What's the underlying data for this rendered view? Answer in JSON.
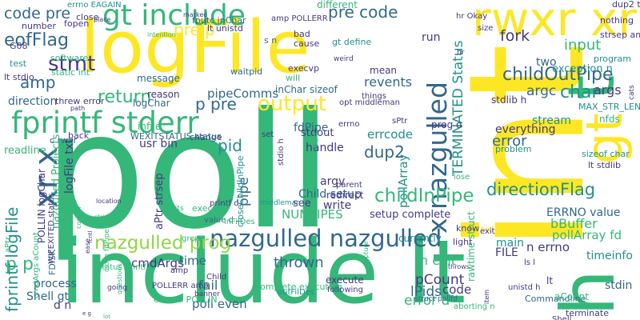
{
  "palette": {
    "background": "#ffffff",
    "yellow": "#fde725",
    "green": "#35b779",
    "teal": "#21918c",
    "blue": "#31688e",
    "purple": "#443983",
    "dark": "#440154",
    "lime": "#90d743"
  },
  "words": [
    {
      "text": "poll",
      "color": "#35b779",
      "rot": 0
    },
    {
      "text": "int",
      "color": "#fde725",
      "rot": 1
    },
    {
      "text": "include lt",
      "color": "#35b779",
      "rot": 0
    },
    {
      "text": "logFile",
      "color": "#fde725",
      "rot": 0
    },
    {
      "text": "gt include",
      "color": "#35b779",
      "rot": 0
    },
    {
      "text": "rwxr xr",
      "color": "#fde725",
      "rot": 0
    },
    {
      "text": "h",
      "color": "#35b779",
      "rot": 1
    },
    {
      "text": "t",
      "color": "#35b779",
      "rot": 1
    },
    {
      "text": "gt",
      "color": "#fde725",
      "rot": 1
    },
    {
      "text": "fprintf stderr",
      "color": "#35b779",
      "rot": 0
    },
    {
      "text": "nazgulled nazgulled",
      "color": "#31688e",
      "rot": 0
    },
    {
      "text": "x nazgulled",
      "color": "#31688e",
      "rot": 1
    },
    {
      "text": "nazgulled prog",
      "color": "#90d743",
      "rot": 0
    },
    {
      "text": "xr x",
      "color": "#31688e",
      "rot": 1
    },
    {
      "text": "eofFlag",
      "color": "#31688e",
      "rot": 0
    },
    {
      "text": "code pre",
      "color": "#31688e",
      "rot": 0
    },
    {
      "text": "pre code",
      "color": "#31688e",
      "rot": 0
    },
    {
      "text": "pre p",
      "color": "#fde725",
      "rot": 0
    },
    {
      "text": "stmt",
      "color": "#443983",
      "rot": 0
    },
    {
      "text": "amp",
      "color": "#31688e",
      "rot": 0
    },
    {
      "text": "return",
      "color": "#35b779",
      "rot": 0
    },
    {
      "text": "p pre",
      "color": "#31688e",
      "rot": 0
    },
    {
      "text": "output",
      "color": "#fde725",
      "rot": 0
    },
    {
      "text": "childOutPipe",
      "color": "#31688e",
      "rot": 0
    },
    {
      "text": "char",
      "color": "#21918c",
      "rot": 0
    },
    {
      "text": "args",
      "color": "#443983",
      "rot": 0
    },
    {
      "text": "argc",
      "color": "#31688e",
      "rot": 0
    },
    {
      "text": "input",
      "color": "#35b779",
      "rot": 0
    },
    {
      "text": "fork",
      "color": "#443983",
      "rot": 0
    },
    {
      "text": "run",
      "color": "#443983",
      "rot": 0
    },
    {
      "text": "exception n",
      "color": "#21918c",
      "rot": 0
    },
    {
      "text": "TERMINATED Status",
      "color": "#21918c",
      "rot": 1
    },
    {
      "text": "revents",
      "color": "#31688e",
      "rot": 0
    },
    {
      "text": "pollArray",
      "color": "#21918c",
      "rot": 1
    },
    {
      "text": "fdPipe",
      "color": "#31688e",
      "rot": 0
    },
    {
      "text": "errcode",
      "color": "#21918c",
      "rot": 0
    },
    {
      "text": "dup2",
      "color": "#31688e",
      "rot": 0
    },
    {
      "text": "childInPipe",
      "color": "#35b779",
      "rot": 0
    },
    {
      "text": "directionFlag",
      "color": "#21918c",
      "rot": 0
    },
    {
      "text": "pid",
      "color": "#21918c",
      "rot": 0
    },
    {
      "text": "pipe",
      "color": "#31688e",
      "rot": 1
    },
    {
      "text": "cmdArgs",
      "color": "#443983",
      "rot": 0
    },
    {
      "text": "time",
      "color": "#31688e",
      "rot": 0
    },
    {
      "text": "thrown",
      "color": "#31688e",
      "rot": 0
    },
    {
      "text": "n exit",
      "color": "#35b779",
      "rot": 0
    },
    {
      "text": "pCount",
      "color": "#443983",
      "rot": 0
    },
    {
      "text": "lPids",
      "color": "#31688e",
      "rot": 0
    },
    {
      "text": "code",
      "color": "#443983",
      "rot": 0
    },
    {
      "text": "error d",
      "color": "#35b779",
      "rot": 0
    },
    {
      "text": "fprintf logFile",
      "color": "#21918c",
      "rot": 1
    },
    {
      "text": "p p",
      "color": "#35b779",
      "rot": 0
    },
    {
      "text": "error",
      "color": "#31688e",
      "rot": 0
    },
    {
      "text": "everything",
      "color": "#443983",
      "rot": 0
    },
    {
      "text": "problem",
      "color": "#21918c",
      "rot": 0
    },
    {
      "text": "bBuffer",
      "color": "#35b779",
      "rot": 0
    },
    {
      "text": "pollArray fd",
      "color": "#35b779",
      "rot": 0
    },
    {
      "text": "n errno",
      "color": "#443983",
      "rot": 0
    },
    {
      "text": "timeinfo",
      "color": "#21918c",
      "rot": 0
    },
    {
      "text": "lt",
      "color": "#443983",
      "rot": 0
    },
    {
      "text": "stdin",
      "color": "#31688e",
      "rot": 0
    },
    {
      "text": "ERRNO value",
      "color": "#31688e",
      "rot": 0
    },
    {
      "text": "main",
      "color": "#21918c",
      "rot": 0
    },
    {
      "text": "FILE",
      "color": "#443983",
      "rot": 0
    },
    {
      "text": "handle",
      "color": "#443983",
      "rot": 0
    },
    {
      "text": "stdout",
      "color": "#443983",
      "rot": 0
    },
    {
      "text": "setup complete",
      "color": "#443983",
      "rot": 0
    },
    {
      "text": "Child setup",
      "color": "#31688e",
      "rot": 0
    },
    {
      "text": "NUMPIPES",
      "color": "#35b779",
      "rot": 0
    },
    {
      "text": "write",
      "color": "#443983",
      "rot": 0
    },
    {
      "text": "argv",
      "color": "#443983",
      "rot": 0
    },
    {
      "text": "see",
      "color": "#443983",
      "rot": 0
    },
    {
      "text": "process",
      "color": "#31688e",
      "rot": 0
    },
    {
      "text": "Shell gt",
      "color": "#31688e",
      "rot": 0
    },
    {
      "text": "d n",
      "color": "#443983",
      "rot": 0
    },
    {
      "text": "fail",
      "color": "#31688e",
      "rot": 0
    },
    {
      "text": "poll even",
      "color": "#31688e",
      "rot": 0
    },
    {
      "text": "direction",
      "color": "#31688e",
      "rot": 0
    },
    {
      "text": "readline",
      "color": "#35b779",
      "rot": 0
    },
    {
      "text": "usr bin",
      "color": "#443983",
      "rot": 0
    },
    {
      "text": "pipeComms",
      "color": "#31688e",
      "rot": 0
    },
    {
      "text": "logChar",
      "color": "#31688e",
      "rot": 0
    },
    {
      "text": "reason",
      "color": "#443983",
      "rot": 0
    },
    {
      "text": "message",
      "color": "#31688e",
      "rot": 0
    },
    {
      "text": "mean",
      "color": "#443983",
      "rot": 0
    },
    {
      "text": "waitpid",
      "color": "#31688e",
      "rot": 0
    },
    {
      "text": "things",
      "color": "#443983",
      "rot": 0
    },
    {
      "text": "different",
      "color": "#35b779",
      "rot": 0
    },
    {
      "text": "two",
      "color": "#31688e",
      "rot": 0
    },
    {
      "text": "stream",
      "color": "#21918c",
      "rot": 0
    },
    {
      "text": "stdlib h",
      "color": "#443983",
      "rot": 0
    },
    {
      "text": "MAX_STR_LEN",
      "color": "#21918c",
      "rot": 0
    },
    {
      "text": "nfds",
      "color": "#35b779",
      "rot": 0
    },
    {
      "text": "sizeof char",
      "color": "#21918c",
      "rot": 0
    },
    {
      "text": "lt stdlib",
      "color": "#443983",
      "rot": 0
    },
    {
      "text": "program",
      "color": "#21918c",
      "rot": 0
    },
    {
      "text": "strsep amp",
      "color": "#443983",
      "rot": 0
    },
    {
      "text": "nothing",
      "color": "#443983",
      "rot": 0
    },
    {
      "text": "dup2 threw",
      "color": "#443983",
      "rot": 0
    },
    {
      "text": "hr Okay",
      "color": "#443983",
      "rot": 0
    },
    {
      "text": "amp POLLERR",
      "color": "#443983",
      "rot": 0
    },
    {
      "text": "errno EAGAIN",
      "color": "#21918c",
      "rot": 0
    },
    {
      "text": "fputc inChar",
      "color": "#31688e",
      "rot": 0
    },
    {
      "text": "lt unistd",
      "color": "#443983",
      "rot": 0
    },
    {
      "text": "number",
      "color": "#443983",
      "rot": 0
    },
    {
      "text": "fopen",
      "color": "#443983",
      "rot": 0
    },
    {
      "text": "G08",
      "color": "#443983",
      "rot": 0
    },
    {
      "text": "test",
      "color": "#21918c",
      "rot": 0
    },
    {
      "text": "software",
      "color": "#35b779",
      "rot": 0
    },
    {
      "text": "static int",
      "color": "#35b779",
      "rot": 0
    },
    {
      "text": "lt stdio",
      "color": "#443983",
      "rot": 0
    },
    {
      "text": "threw error",
      "color": "#443983",
      "rot": 0
    },
    {
      "text": "close",
      "color": "#443983",
      "rot": 0
    },
    {
      "text": "bad",
      "color": "#443983",
      "rot": 0
    },
    {
      "text": "cause",
      "color": "#443983",
      "rot": 0
    },
    {
      "text": "gt define",
      "color": "#21918c",
      "rot": 0
    },
    {
      "text": "s n",
      "color": "#31688e",
      "rot": 0
    },
    {
      "text": "execvp",
      "color": "#443983",
      "rot": 0
    },
    {
      "text": "will",
      "color": "#35b779",
      "rot": 0
    },
    {
      "text": "inChar sizeof",
      "color": "#31688e",
      "rot": 0
    },
    {
      "text": "opt middleman",
      "color": "#443983",
      "rot": 0
    },
    {
      "text": "size",
      "color": "#443983",
      "rot": 0
    },
    {
      "text": "sPtr",
      "color": "#443983",
      "rot": 0
    },
    {
      "text": "errno",
      "color": "#443983",
      "rot": 0
    },
    {
      "text": "set",
      "color": "#443983",
      "rot": 0
    },
    {
      "text": "change",
      "color": "#443983",
      "rot": 0
    },
    {
      "text": "WEXITSTATUS status",
      "color": "#31688e",
      "rot": 0
    },
    {
      "text": "back",
      "color": "#443983",
      "rot": 0
    },
    {
      "text": "c rwxr",
      "color": "#31688e",
      "rot": 0
    },
    {
      "text": "execv",
      "color": "#35b779",
      "rot": 0
    },
    {
      "text": "printf d",
      "color": "#443983",
      "rot": 0
    },
    {
      "text": "parent",
      "color": "#443983",
      "rot": 0
    },
    {
      "text": "value d",
      "color": "#31688e",
      "rot": 0
    },
    {
      "text": "grep",
      "color": "#35b779",
      "rot": 0
    },
    {
      "text": "POLLERR amp",
      "color": "#443983",
      "rot": 0
    },
    {
      "text": "events POLLIN",
      "color": "#35b779",
      "rot": 0
    },
    {
      "text": "inFilDes",
      "color": "#35b779",
      "rot": 0
    },
    {
      "text": "complete executing",
      "color": "#35b779",
      "rot": 0
    },
    {
      "text": "outFilDes",
      "color": "#21918c",
      "rot": 0
    },
    {
      "text": "execute",
      "color": "#443983",
      "rot": 0
    },
    {
      "text": "following",
      "color": "#443983",
      "rot": 0
    },
    {
      "text": "pid_t pid",
      "color": "#fde725",
      "rot": 0
    },
    {
      "text": "exit",
      "color": "#443983",
      "rot": 0
    },
    {
      "text": "ls l",
      "color": "#443983",
      "rot": 0
    },
    {
      "text": "unistd h",
      "color": "#443983",
      "rot": 0
    },
    {
      "text": "Commandline",
      "color": "#31688e",
      "rot": 0
    },
    {
      "text": "aCount",
      "color": "#35b779",
      "rot": 0
    },
    {
      "text": "terminate",
      "color": "#443983",
      "rot": 0
    },
    {
      "text": "Shell",
      "color": "#443983",
      "rot": 0
    },
    {
      "text": "aborting n",
      "color": "#35b779",
      "rot": 0
    },
    {
      "text": "struct pollfd",
      "color": "#31688e",
      "rot": 0
    },
    {
      "text": "going",
      "color": "#443983",
      "rot": 0
    },
    {
      "text": "banner",
      "color": "#443983",
      "rot": 0
    },
    {
      "text": "Child",
      "color": "#443983",
      "rot": 0
    },
    {
      "text": "wrong",
      "color": "#443983",
      "rot": 0
    },
    {
      "text": "status printf",
      "color": "#35b779",
      "rot": 0
    },
    {
      "text": "amp",
      "color": "#443983",
      "rot": 0
    },
    {
      "text": "closeChildInPipe",
      "color": "#21918c",
      "rot": 1
    },
    {
      "text": "close fdPipe",
      "color": "#35b779",
      "rot": 1
    },
    {
      "text": "WIFEXITED status",
      "color": "#443983",
      "rot": 1
    },
    {
      "text": "FDISK",
      "color": "#31688e",
      "rot": 1
    },
    {
      "text": "POLLIN logChar",
      "color": "#443983",
      "rot": 1
    },
    {
      "text": "cmdArgs aCount",
      "color": "#35b779",
      "rot": 1
    },
    {
      "text": "aPtr",
      "color": "#35b779",
      "rot": 1
    },
    {
      "text": "aPtr strsep",
      "color": "#443983",
      "rot": 1
    },
    {
      "text": "logFile txt",
      "color": "#443983",
      "rot": 1
    },
    {
      "text": "nazgulled Projects",
      "color": "#35b779",
      "rot": 1
    },
    {
      "text": "stdio h",
      "color": "#443983",
      "rot": 1
    },
    {
      "text": "executing s",
      "color": "#35b779",
      "rot": 1
    },
    {
      "text": "currently",
      "color": "#21918c",
      "rot": 0
    },
    {
      "text": "rawtime struct",
      "color": "#35b779",
      "rot": 1
    },
    {
      "text": "prog o",
      "color": "#443983",
      "rot": 0
    },
    {
      "text": "lose",
      "color": "#35b779",
      "rot": 0
    },
    {
      "text": "know",
      "color": "#443983",
      "rot": 0
    },
    {
      "text": "light",
      "color": "#443983",
      "rot": 0
    },
    {
      "text": "redirect",
      "color": "#443983",
      "rot": 0
    },
    {
      "text": "infile",
      "color": "#35b779",
      "rot": 0
    },
    {
      "text": "middleman",
      "color": "#21918c",
      "rot": 0
    },
    {
      "text": "path",
      "color": "#443983",
      "rot": 0
    },
    {
      "text": "weird",
      "color": "#443983",
      "rot": 0
    },
    {
      "text": "intention",
      "color": "#35b779",
      "rot": 0
    },
    {
      "text": "marked",
      "color": "#443983",
      "rot": 0
    },
    {
      "text": "place",
      "color": "#443983",
      "rot": 0
    },
    {
      "text": "location",
      "color": "#443983",
      "rot": 0
    },
    {
      "text": "string",
      "color": "#35b779",
      "rot": 0
    },
    {
      "text": "control",
      "color": "#35b779",
      "rot": 1
    },
    {
      "text": "fcntl",
      "color": "#443983",
      "rot": 1
    },
    {
      "text": "ease",
      "color": "#443983",
      "rot": 1
    },
    {
      "text": "Splits",
      "color": "#35b779",
      "rot": 0
    },
    {
      "text": "capture",
      "color": "#35b779",
      "rot": 1
    },
    {
      "text": "throws",
      "color": "#443983",
      "rot": 0
    },
    {
      "text": "item",
      "color": "#443983",
      "rot": 1
    },
    {
      "text": "hr",
      "color": "#443983",
      "rot": 0
    },
    {
      "text": "cats",
      "color": "#443983",
      "rot": 1
    },
    {
      "text": "lot",
      "color": "#35b779",
      "rot": 0
    },
    {
      "text": "e g",
      "color": "#443983",
      "rot": 0
    },
    {
      "text": "questions",
      "color": "#35b779",
      "rot": 1
    }
  ]
}
